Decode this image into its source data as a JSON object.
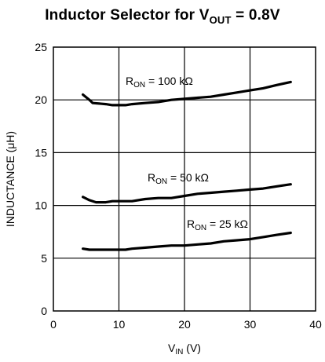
{
  "title": {
    "prefix": "Inductor Selector for V",
    "sub": "OUT",
    "suffix": " = 0.8V"
  },
  "chart_data": {
    "type": "line",
    "title": "Inductor Selector for V_OUT = 0.8V",
    "xlabel": {
      "main": "V",
      "sub": "IN",
      "unit": " (V)"
    },
    "ylabel": "INDUCTANCE (μH)",
    "xlim": [
      0,
      40
    ],
    "ylim": [
      0,
      25
    ],
    "xticks": [
      0,
      10,
      20,
      30,
      40
    ],
    "yticks": [
      0,
      5,
      10,
      15,
      20,
      25
    ],
    "grid": true,
    "series": [
      {
        "label": {
          "main": "R",
          "sub": "ON",
          "value": " = 100 kΩ"
        },
        "x": [
          4.5,
          5.5,
          6,
          8,
          9,
          11,
          12,
          14,
          16,
          18,
          20,
          22,
          24,
          26,
          28,
          30,
          32,
          34,
          36.2
        ],
        "y": [
          20.5,
          20,
          19.7,
          19.6,
          19.5,
          19.5,
          19.6,
          19.7,
          19.8,
          20.0,
          20.1,
          20.2,
          20.3,
          20.5,
          20.7,
          20.9,
          21.1,
          21.4,
          21.7
        ]
      },
      {
        "label": {
          "main": "R",
          "sub": "ON",
          "value": " = 50 kΩ"
        },
        "x": [
          4.5,
          5.5,
          6.5,
          8,
          9,
          12,
          14,
          16,
          18,
          20,
          22,
          24,
          26,
          28,
          30,
          32,
          34,
          36.2
        ],
        "y": [
          10.8,
          10.5,
          10.3,
          10.3,
          10.4,
          10.4,
          10.6,
          10.7,
          10.7,
          10.9,
          11.1,
          11.2,
          11.3,
          11.4,
          11.5,
          11.6,
          11.8,
          12.0
        ]
      },
      {
        "label": {
          "main": "R",
          "sub": "ON",
          "value": " = 25 kΩ"
        },
        "x": [
          4.5,
          5.5,
          7,
          9,
          11,
          12,
          14,
          16,
          18,
          20,
          22,
          24,
          26,
          28,
          30,
          32,
          34,
          36.2
        ],
        "y": [
          5.9,
          5.8,
          5.8,
          5.8,
          5.8,
          5.9,
          6.0,
          6.1,
          6.2,
          6.2,
          6.3,
          6.4,
          6.6,
          6.7,
          6.8,
          7.0,
          7.2,
          7.4
        ]
      }
    ]
  }
}
